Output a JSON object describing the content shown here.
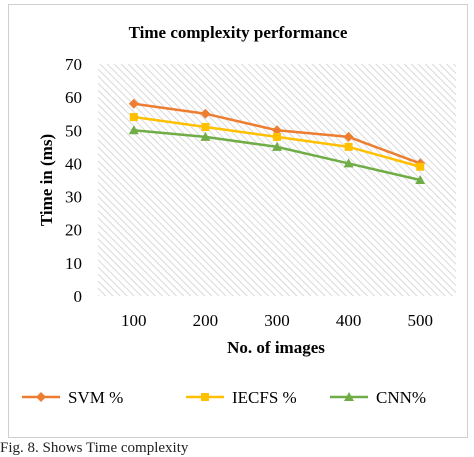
{
  "chart_data": {
    "type": "line",
    "title": "Time complexity performance",
    "xlabel": "No. of images",
    "ylabel": "Time in (ms)",
    "categories": [
      "100",
      "200",
      "300",
      "400",
      "500"
    ],
    "ylim": [
      0,
      70
    ],
    "yticks": [
      "0",
      "10",
      "20",
      "30",
      "40",
      "50",
      "60",
      "70"
    ],
    "grid": false,
    "legend_position": "bottom",
    "series": [
      {
        "name": "SVM %",
        "color": "#ED7D31",
        "marker": "diamond",
        "values": [
          58,
          55,
          50,
          48,
          40
        ]
      },
      {
        "name": "IECFS %",
        "color": "#FFC000",
        "marker": "square",
        "values": [
          54,
          51,
          48,
          45,
          39
        ]
      },
      {
        "name": "CNN%",
        "color": "#70AD47",
        "marker": "triangle",
        "values": [
          50,
          48,
          45,
          40,
          35
        ]
      }
    ]
  },
  "caption": "Fig. 8.   Shows Time complexity"
}
